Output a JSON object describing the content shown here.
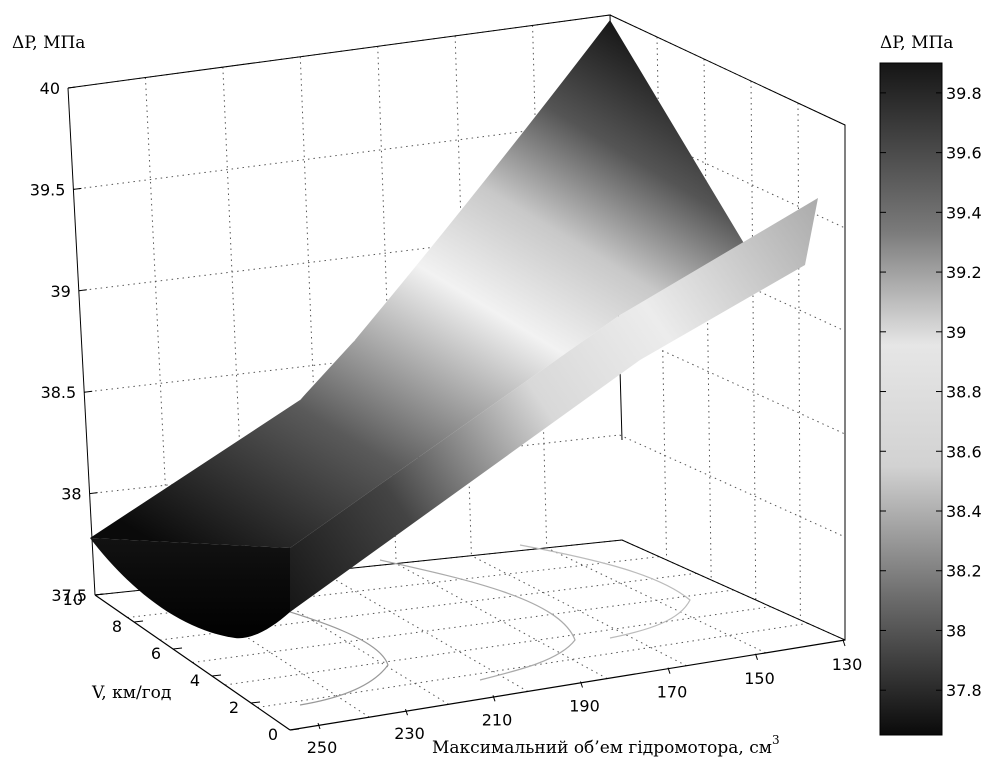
{
  "chart_data": {
    "type": "surface3d",
    "zlabel": "ΔP, МПа",
    "xlabel": "Максимальний об’ем гідромотора, см",
    "xlabel_superscript": "3",
    "ylabel": "V, км/год",
    "z_ticks": [
      "37.5",
      "38",
      "38.5",
      "39",
      "39.5",
      "40"
    ],
    "x_ticks": [
      "250",
      "230",
      "210",
      "190",
      "170",
      "150",
      "130"
    ],
    "y_ticks": [
      "0",
      "2",
      "4",
      "6",
      "8",
      "10"
    ],
    "colorbar": {
      "title": "ΔP, МПа",
      "ticks": [
        "39.8",
        "39.6",
        "39.4",
        "39.2",
        "39",
        "38.8",
        "38.6",
        "38.4",
        "38.2",
        "38",
        "37.8"
      ],
      "range": [
        37.65,
        39.9
      ],
      "colormap": "gray"
    },
    "zlim": [
      37.5,
      40
    ],
    "xlim": [
      250,
      130
    ],
    "ylim": [
      0,
      10
    ],
    "grid": true,
    "surface_points": [
      {
        "x": 250,
        "y": 10,
        "z": 37.75
      },
      {
        "x": 240,
        "y": 4,
        "z": 37.6
      },
      {
        "x": 250,
        "y": 0,
        "z": 37.7
      },
      {
        "x": 130,
        "y": 10,
        "z": 40.0
      },
      {
        "x": 130,
        "y": 0,
        "z": 39.55
      }
    ]
  }
}
